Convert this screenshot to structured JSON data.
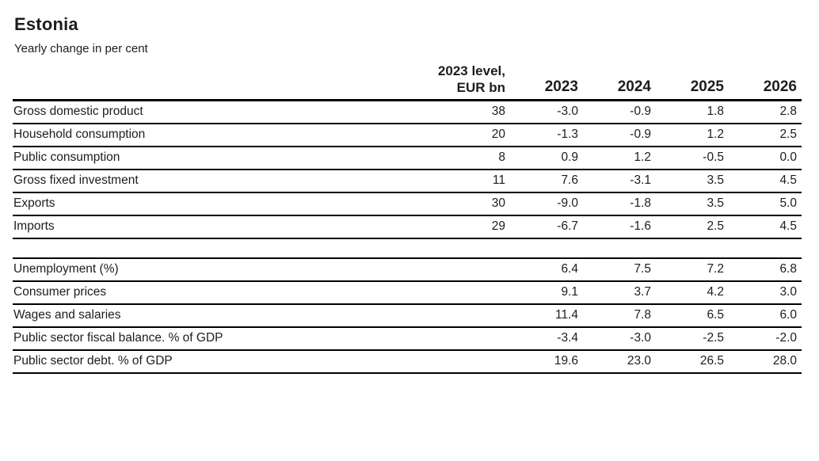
{
  "header": {
    "title": "Estonia",
    "subtitle": "Yearly change in per cent"
  },
  "table": {
    "level_header": {
      "line1": "2023 level,",
      "line2": "EUR bn"
    },
    "year_headers": [
      "2023",
      "2024",
      "2025",
      "2026"
    ],
    "rows": [
      {
        "label": "Gross domestic product",
        "level": "38",
        "values": [
          "-3.0",
          "-0.9",
          "1.8",
          "2.8"
        ]
      },
      {
        "label": "Household consumption",
        "level": "20",
        "values": [
          "-1.3",
          "-0.9",
          "1.2",
          "2.5"
        ]
      },
      {
        "label": "Public consumption",
        "level": "8",
        "values": [
          "0.9",
          "1.2",
          "-0.5",
          "0.0"
        ]
      },
      {
        "label": "Gross fixed investment",
        "level": "11",
        "values": [
          "7.6",
          "-3.1",
          "3.5",
          "4.5"
        ]
      },
      {
        "label": "Exports",
        "level": "30",
        "values": [
          "-9.0",
          "-1.8",
          "3.5",
          "5.0"
        ]
      },
      {
        "label": "Imports",
        "level": "29",
        "values": [
          "-6.7",
          "-1.6",
          "2.5",
          "4.5"
        ]
      },
      {
        "label": "Unemployment (%)",
        "level": "",
        "values": [
          "6.4",
          "7.5",
          "7.2",
          "6.8"
        ]
      },
      {
        "label": "Consumer prices",
        "level": "",
        "values": [
          "9.1",
          "3.7",
          "4.2",
          "3.0"
        ]
      },
      {
        "label": "Wages and salaries",
        "level": "",
        "values": [
          "11.4",
          "7.8",
          "6.5",
          "6.0"
        ]
      },
      {
        "label": "Public sector fiscal balance. % of GDP",
        "level": "",
        "values": [
          "-3.4",
          "-3.0",
          "-2.5",
          "-2.0"
        ]
      },
      {
        "label": "Public sector debt. % of GDP",
        "level": "",
        "values": [
          "19.6",
          "23.0",
          "26.5",
          "28.0"
        ]
      }
    ]
  },
  "chart_data": {
    "type": "table",
    "title": "Estonia",
    "subtitle": "Yearly change in per cent",
    "columns": [
      "",
      "2023 level, EUR bn",
      "2023",
      "2024",
      "2025",
      "2026"
    ],
    "rows": [
      [
        "Gross domestic product",
        38,
        -3.0,
        -0.9,
        1.8,
        2.8
      ],
      [
        "Household consumption",
        20,
        -1.3,
        -0.9,
        1.2,
        2.5
      ],
      [
        "Public consumption",
        8,
        0.9,
        1.2,
        -0.5,
        0.0
      ],
      [
        "Gross fixed investment",
        11,
        7.6,
        -3.1,
        3.5,
        4.5
      ],
      [
        "Exports",
        30,
        -9.0,
        -1.8,
        3.5,
        5.0
      ],
      [
        "Imports",
        29,
        -6.7,
        -1.6,
        2.5,
        4.5
      ],
      [
        "Unemployment (%)",
        null,
        6.4,
        7.5,
        7.2,
        6.8
      ],
      [
        "Consumer prices",
        null,
        9.1,
        3.7,
        4.2,
        3.0
      ],
      [
        "Wages and salaries",
        null,
        11.4,
        7.8,
        6.5,
        6.0
      ],
      [
        "Public sector fiscal balance. % of GDP",
        null,
        -3.4,
        -3.0,
        -2.5,
        -2.0
      ],
      [
        "Public sector debt. % of GDP",
        null,
        19.6,
        23.0,
        26.5,
        28.0
      ]
    ]
  },
  "colors": {
    "background": "#ffffff",
    "text": "#1d1d1b",
    "rule": "#000000"
  }
}
